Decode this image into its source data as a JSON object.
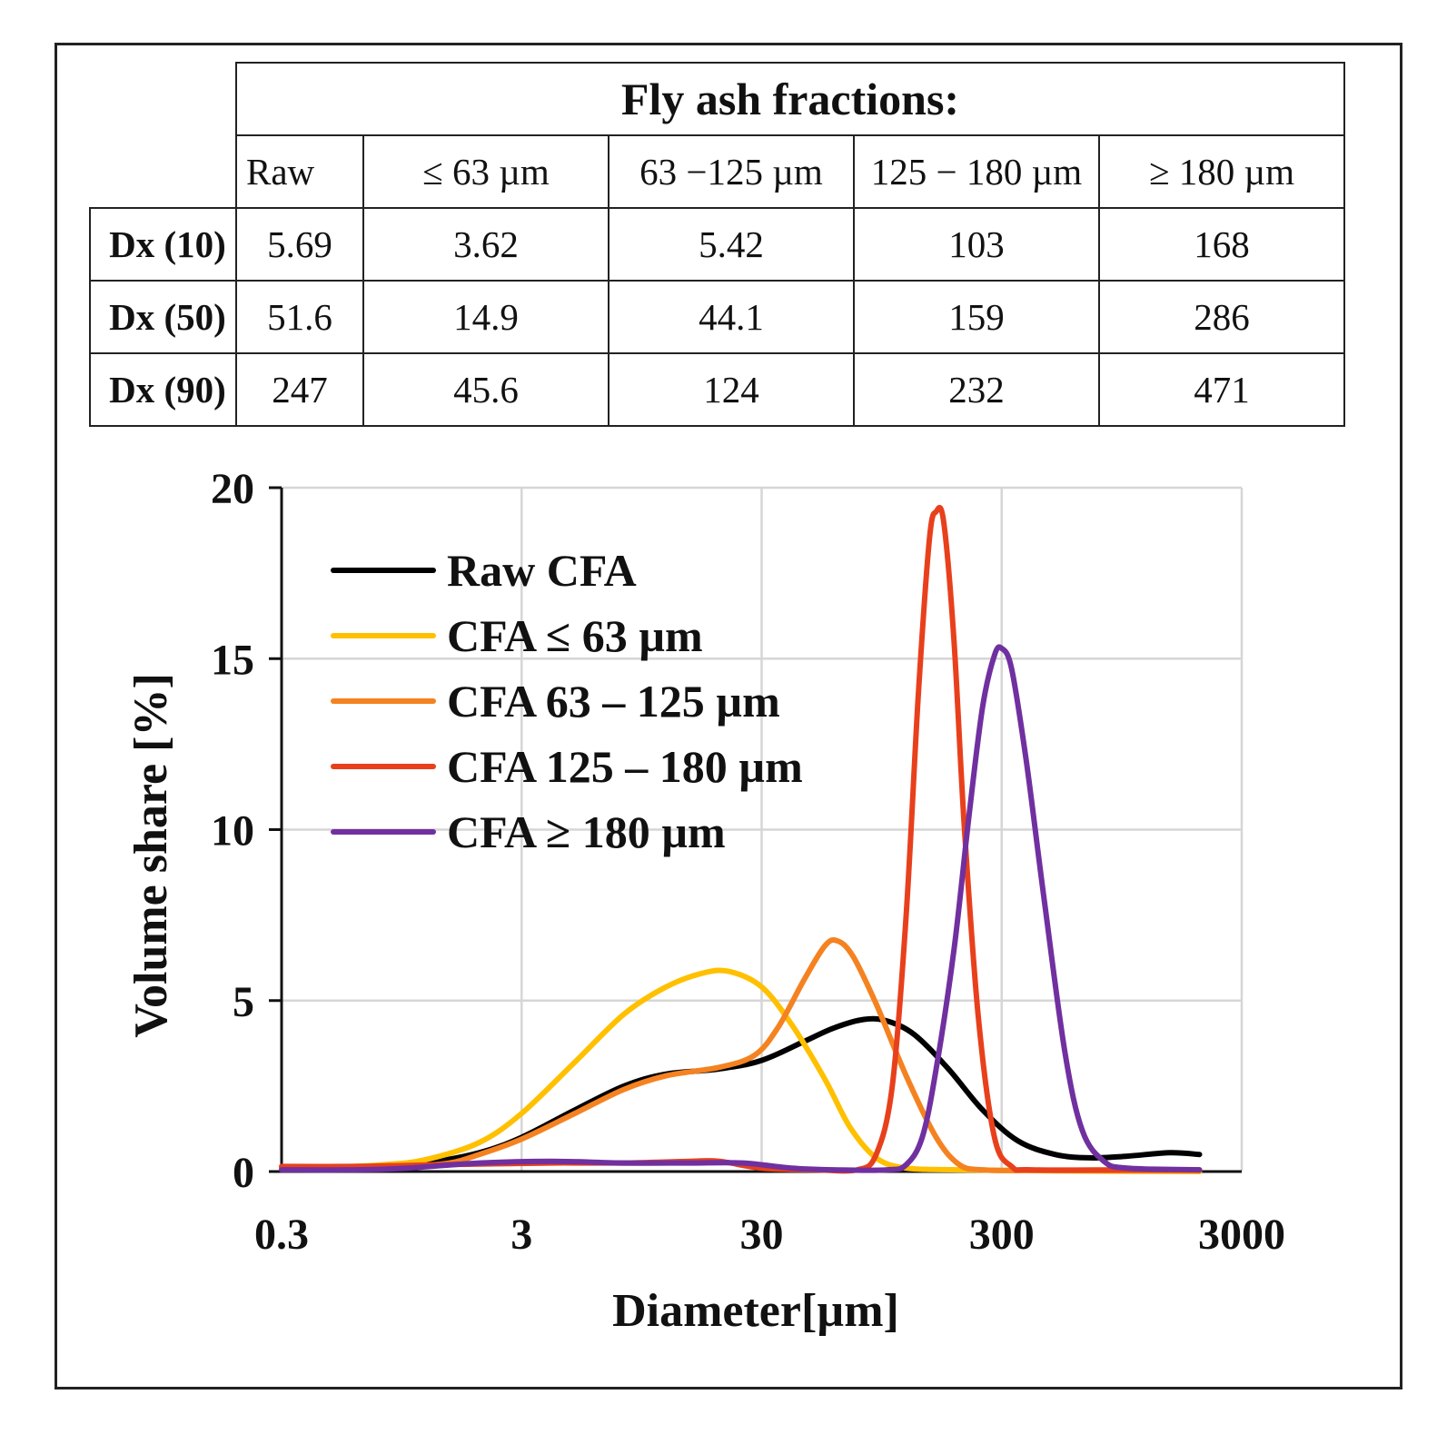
{
  "table": {
    "title": "Fly ash fractions:",
    "columns": [
      "Raw",
      "≤ 63 µm",
      "63 −125 µm",
      "125 − 180 µm",
      "≥ 180 µm"
    ],
    "rows": [
      {
        "label": "Dx (10)",
        "values": [
          "5.69",
          "3.62",
          "5.42",
          "103",
          "168"
        ]
      },
      {
        "label": "Dx (50)",
        "values": [
          "51.6",
          "14.9",
          "44.1",
          "159",
          "286"
        ]
      },
      {
        "label": "Dx (90)",
        "values": [
          "247",
          "45.6",
          "124",
          "232",
          "471"
        ]
      }
    ]
  },
  "chart_data": {
    "type": "line",
    "xscale": "log",
    "xlabel": "Diameter[µm]",
    "ylabel": "Volume  share [%]",
    "xlim": [
      0.3,
      3000
    ],
    "ylim": [
      0,
      20
    ],
    "xticks": [
      0.3,
      3,
      30,
      300,
      3000
    ],
    "xtick_labels": [
      "0.3",
      "3",
      "30",
      "300",
      "3000"
    ],
    "yticks": [
      0,
      5,
      10,
      15,
      20
    ],
    "ytick_labels": [
      "0",
      "5",
      "10",
      "15",
      "20"
    ],
    "grid": true,
    "legend_position": "top-left",
    "series": [
      {
        "name": "Raw CFA",
        "color": "#000000",
        "points": [
          [
            0.3,
            0.1
          ],
          [
            0.5,
            0.12
          ],
          [
            0.8,
            0.15
          ],
          [
            1.2,
            0.25
          ],
          [
            2,
            0.55
          ],
          [
            3,
            1.0
          ],
          [
            5,
            1.8
          ],
          [
            8,
            2.5
          ],
          [
            12,
            2.85
          ],
          [
            20,
            3.0
          ],
          [
            30,
            3.25
          ],
          [
            45,
            3.8
          ],
          [
            60,
            4.2
          ],
          [
            80,
            4.45
          ],
          [
            100,
            4.4
          ],
          [
            130,
            4.0
          ],
          [
            180,
            3.0
          ],
          [
            250,
            1.8
          ],
          [
            350,
            0.9
          ],
          [
            500,
            0.5
          ],
          [
            700,
            0.4
          ],
          [
            1000,
            0.45
          ],
          [
            1500,
            0.55
          ],
          [
            2000,
            0.5
          ]
        ]
      },
      {
        "name": "CFA ≤ 63 µm",
        "color": "#FFC000",
        "points": [
          [
            0.3,
            0.1
          ],
          [
            0.5,
            0.13
          ],
          [
            0.8,
            0.2
          ],
          [
            1.2,
            0.35
          ],
          [
            2,
            0.85
          ],
          [
            3,
            1.7
          ],
          [
            5,
            3.2
          ],
          [
            8,
            4.6
          ],
          [
            12,
            5.4
          ],
          [
            17,
            5.8
          ],
          [
            22,
            5.85
          ],
          [
            30,
            5.4
          ],
          [
            40,
            4.3
          ],
          [
            55,
            2.7
          ],
          [
            70,
            1.3
          ],
          [
            90,
            0.4
          ],
          [
            120,
            0.1
          ],
          [
            200,
            0.05
          ],
          [
            500,
            0.02
          ],
          [
            2000,
            0.0
          ]
        ]
      },
      {
        "name": "CFA 63 – 125 µm",
        "color": "#F58220",
        "points": [
          [
            0.3,
            0.1
          ],
          [
            0.6,
            0.1
          ],
          [
            1,
            0.15
          ],
          [
            1.5,
            0.25
          ],
          [
            2,
            0.5
          ],
          [
            3,
            0.95
          ],
          [
            5,
            1.7
          ],
          [
            8,
            2.4
          ],
          [
            12,
            2.8
          ],
          [
            20,
            3.05
          ],
          [
            28,
            3.4
          ],
          [
            35,
            4.2
          ],
          [
            45,
            5.6
          ],
          [
            55,
            6.6
          ],
          [
            62,
            6.75
          ],
          [
            72,
            6.3
          ],
          [
            90,
            4.9
          ],
          [
            120,
            2.8
          ],
          [
            160,
            1.0
          ],
          [
            200,
            0.2
          ],
          [
            250,
            0.05
          ],
          [
            400,
            0.03
          ],
          [
            2000,
            0.02
          ]
        ]
      },
      {
        "name": "CFA 125 – 180 µm",
        "color": "#E8401C",
        "points": [
          [
            0.3,
            0.15
          ],
          [
            0.6,
            0.15
          ],
          [
            1,
            0.18
          ],
          [
            2,
            0.22
          ],
          [
            4,
            0.25
          ],
          [
            8,
            0.25
          ],
          [
            15,
            0.3
          ],
          [
            20,
            0.3
          ],
          [
            30,
            0.1
          ],
          [
            50,
            0.05
          ],
          [
            75,
            0.05
          ],
          [
            90,
            0.5
          ],
          [
            105,
            2.5
          ],
          [
            120,
            7.5
          ],
          [
            135,
            14
          ],
          [
            150,
            18.5
          ],
          [
            160,
            19.3
          ],
          [
            172,
            19.0
          ],
          [
            190,
            15.5
          ],
          [
            210,
            10.0
          ],
          [
            240,
            4.5
          ],
          [
            280,
            1.0
          ],
          [
            330,
            0.15
          ],
          [
            400,
            0.05
          ],
          [
            1000,
            0.05
          ],
          [
            2000,
            0.05
          ]
        ]
      },
      {
        "name": "CFA ≥ 180 µm",
        "color": "#7030A0",
        "points": [
          [
            0.3,
            0.05
          ],
          [
            0.6,
            0.05
          ],
          [
            1,
            0.1
          ],
          [
            2,
            0.25
          ],
          [
            4,
            0.3
          ],
          [
            8,
            0.25
          ],
          [
            15,
            0.25
          ],
          [
            25,
            0.25
          ],
          [
            40,
            0.1
          ],
          [
            60,
            0.05
          ],
          [
            100,
            0.05
          ],
          [
            120,
            0.2
          ],
          [
            140,
            1.0
          ],
          [
            160,
            3.0
          ],
          [
            190,
            6.5
          ],
          [
            220,
            10.5
          ],
          [
            250,
            13.6
          ],
          [
            280,
            15.1
          ],
          [
            300,
            15.3
          ],
          [
            330,
            14.7
          ],
          [
            380,
            12.0
          ],
          [
            450,
            8.0
          ],
          [
            550,
            3.5
          ],
          [
            650,
            1.2
          ],
          [
            800,
            0.3
          ],
          [
            1000,
            0.1
          ],
          [
            2000,
            0.05
          ]
        ]
      }
    ]
  }
}
